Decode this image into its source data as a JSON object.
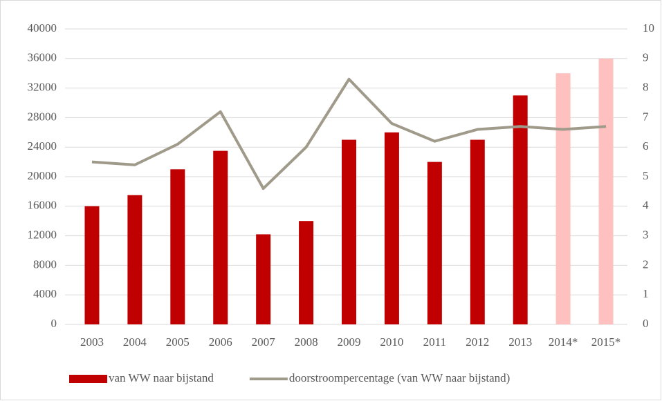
{
  "chart_data": {
    "type": "bar",
    "categories": [
      "2003",
      "2004",
      "2005",
      "2006",
      "2007",
      "2008",
      "2009",
      "2010",
      "2011",
      "2012",
      "2013",
      "2014*",
      "2015*"
    ],
    "series": [
      {
        "name": "van WW naar bijstand",
        "type": "bar",
        "color": "#c00000",
        "colors": [
          "#c00000",
          "#c00000",
          "#c00000",
          "#c00000",
          "#c00000",
          "#c00000",
          "#c00000",
          "#c00000",
          "#c00000",
          "#c00000",
          "#c00000",
          "#ffc0c0",
          "#ffc0c0"
        ],
        "values": [
          16000,
          17500,
          21000,
          23500,
          12200,
          14000,
          25000,
          26000,
          22000,
          25000,
          31000,
          34000,
          36000
        ]
      },
      {
        "name": "doorstroompercentage (van WW naar bijstand)",
        "type": "line",
        "axis": "y2",
        "color": "#a09a8a",
        "values": [
          5.5,
          5.4,
          6.1,
          7.2,
          4.6,
          6.0,
          8.3,
          6.8,
          6.2,
          6.6,
          6.7,
          6.6,
          6.7
        ]
      }
    ],
    "ylim": [
      0,
      40000
    ],
    "yticks": [
      0,
      4000,
      8000,
      12000,
      16000,
      20000,
      24000,
      28000,
      32000,
      36000,
      40000
    ],
    "y2lim": [
      0,
      10
    ],
    "y2ticks": [
      0,
      1,
      2,
      3,
      4,
      5,
      6,
      7,
      8,
      9,
      10
    ],
    "grid": true,
    "legend": "bottom"
  }
}
